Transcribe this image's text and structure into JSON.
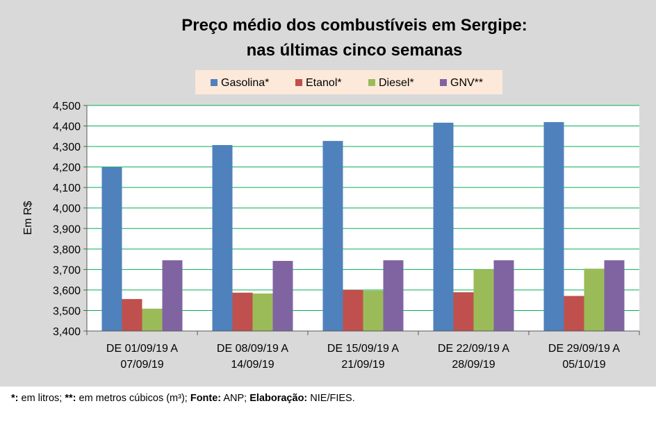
{
  "chart_data": {
    "type": "bar",
    "title_line1": "Preço médio dos combustíveis em Sergipe:",
    "title_line2": "nas últimas cinco semanas",
    "ylabel": "Em R$",
    "xlabel": "",
    "ylim": [
      3.4,
      4.5
    ],
    "ytick_step": 0.1,
    "ytick_labels": [
      "3,400",
      "3,500",
      "3,600",
      "3,700",
      "3,800",
      "3,900",
      "4,000",
      "4,100",
      "4,200",
      "4,300",
      "4,400",
      "4,500"
    ],
    "categories": [
      [
        "DE 01/09/19 A",
        "07/09/19"
      ],
      [
        "DE 08/09/19 A",
        "14/09/19"
      ],
      [
        "DE 15/09/19 A",
        "21/09/19"
      ],
      [
        "DE 22/09/19 A",
        "28/09/19"
      ],
      [
        "DE 29/09/19 A",
        "05/10/19"
      ]
    ],
    "series": [
      {
        "name": "Gasolina*",
        "color": "#4f81bd",
        "values": [
          4.199,
          4.307,
          4.327,
          4.416,
          4.419
        ]
      },
      {
        "name": "Etanol*",
        "color": "#c0504d",
        "values": [
          3.556,
          3.587,
          3.601,
          3.589,
          3.571
        ]
      },
      {
        "name": "Diesel*",
        "color": "#9bbb59",
        "values": [
          3.509,
          3.583,
          3.597,
          3.7,
          3.704
        ]
      },
      {
        "name": "GNV**",
        "color": "#8064a2",
        "values": [
          3.745,
          3.742,
          3.745,
          3.745,
          3.745
        ]
      }
    ],
    "grid": true,
    "grid_color": "#00b050",
    "legend_position": "top-center",
    "legend_background": "#fde9d9"
  },
  "footnote": {
    "s1_bold": "*:",
    "s1_text": " em litros; ",
    "s2_bold": "**:",
    "s2_text": " em metros cúbicos (m³); ",
    "s3_bold": "Fonte:",
    "s3_text": " ANP; ",
    "s4_bold": "Elaboração:",
    "s4_text": " NIE/FIES."
  }
}
